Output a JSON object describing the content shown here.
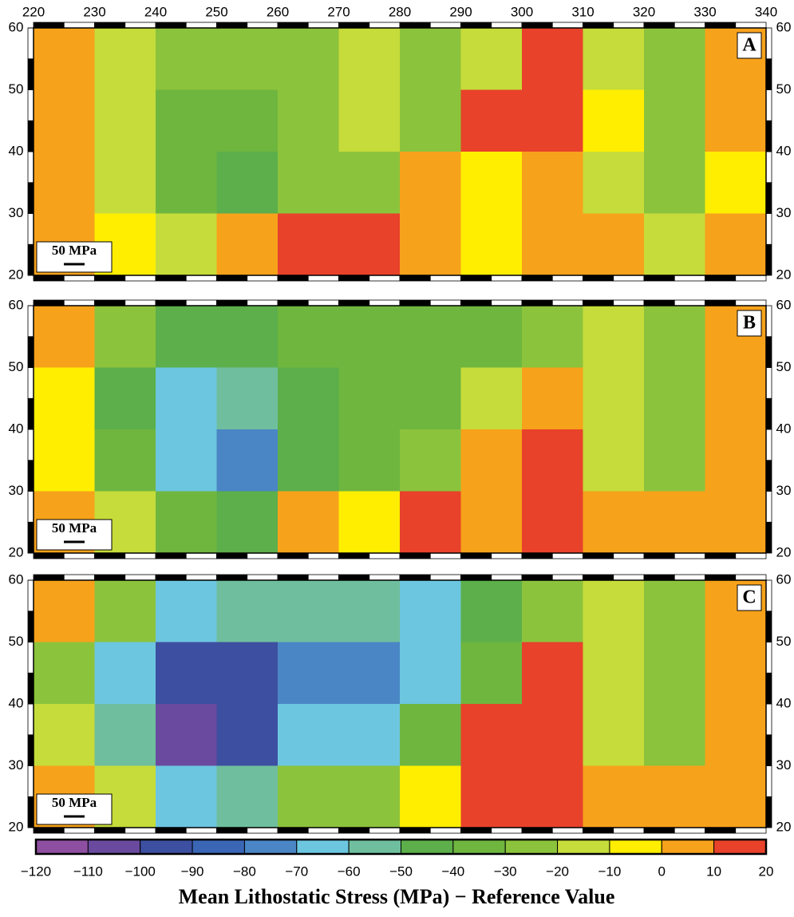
{
  "x_ticks": [
    220,
    230,
    240,
    250,
    260,
    270,
    280,
    290,
    300,
    310,
    320,
    330,
    340
  ],
  "y_ticks": [
    20,
    30,
    40,
    50,
    60
  ],
  "panels": [
    {
      "label": "A",
      "scale_label": "50 MPa",
      "grid": [
        [
          5,
          -15,
          -25,
          -25,
          -25,
          -15,
          -25,
          -15,
          15,
          -15,
          -25,
          5
        ],
        [
          5,
          -15,
          -35,
          -35,
          -25,
          -15,
          -25,
          15,
          15,
          -5,
          -25,
          5
        ],
        [
          5,
          -15,
          -35,
          -45,
          -25,
          -25,
          5,
          -5,
          5,
          -15,
          -25,
          -5
        ],
        [
          5,
          -5,
          -15,
          5,
          15,
          15,
          5,
          -5,
          5,
          5,
          -15,
          5
        ]
      ]
    },
    {
      "label": "B",
      "scale_label": "50 MPa",
      "grid": [
        [
          5,
          -25,
          -45,
          -45,
          -35,
          -35,
          -35,
          -35,
          -25,
          -15,
          -25,
          5
        ],
        [
          -5,
          -45,
          -65,
          -55,
          -45,
          -35,
          -35,
          -15,
          5,
          -15,
          -25,
          5
        ],
        [
          -5,
          -35,
          -65,
          -75,
          -45,
          -35,
          -25,
          5,
          15,
          -15,
          -25,
          5
        ],
        [
          5,
          -15,
          -35,
          -45,
          5,
          -5,
          15,
          5,
          15,
          5,
          5,
          5
        ]
      ]
    },
    {
      "label": "C",
      "scale_label": "50 MPa",
      "grid": [
        [
          5,
          -25,
          -65,
          -55,
          -55,
          -55,
          -65,
          -45,
          -25,
          -15,
          -25,
          5
        ],
        [
          -25,
          -65,
          -95,
          -95,
          -75,
          -75,
          -65,
          -35,
          15,
          -15,
          -25,
          5
        ],
        [
          -15,
          -55,
          -105,
          -95,
          -65,
          -65,
          -35,
          15,
          15,
          -15,
          -25,
          5
        ],
        [
          5,
          -15,
          -65,
          -55,
          -25,
          -25,
          -5,
          15,
          15,
          5,
          5,
          5
        ]
      ]
    }
  ],
  "colorbar": {
    "title": "Mean Lithostatic Stress (MPa) − Reference Value",
    "ticks": [
      {
        "value": -120,
        "label": "−120"
      },
      {
        "value": -110,
        "label": "−110"
      },
      {
        "value": -100,
        "label": "−100"
      },
      {
        "value": -90,
        "label": "−90"
      },
      {
        "value": -80,
        "label": "−80"
      },
      {
        "value": -70,
        "label": "−70"
      },
      {
        "value": -60,
        "label": "−60"
      },
      {
        "value": -50,
        "label": "−50"
      },
      {
        "value": -40,
        "label": "−40"
      },
      {
        "value": -30,
        "label": "−30"
      },
      {
        "value": -20,
        "label": "−20"
      },
      {
        "value": -10,
        "label": "−10"
      },
      0,
      10,
      20
    ],
    "colors": [
      "#8e4fa0",
      "#6a4a9e",
      "#3d4fa0",
      "#3a66b5",
      "#4a86c5",
      "#6cc6e0",
      "#6fbf9e",
      "#5caf4a",
      "#6fb63f",
      "#8cc33c",
      "#c6dc3a",
      "#ffee00",
      "#f7a21b",
      "#e8422a"
    ]
  }
}
